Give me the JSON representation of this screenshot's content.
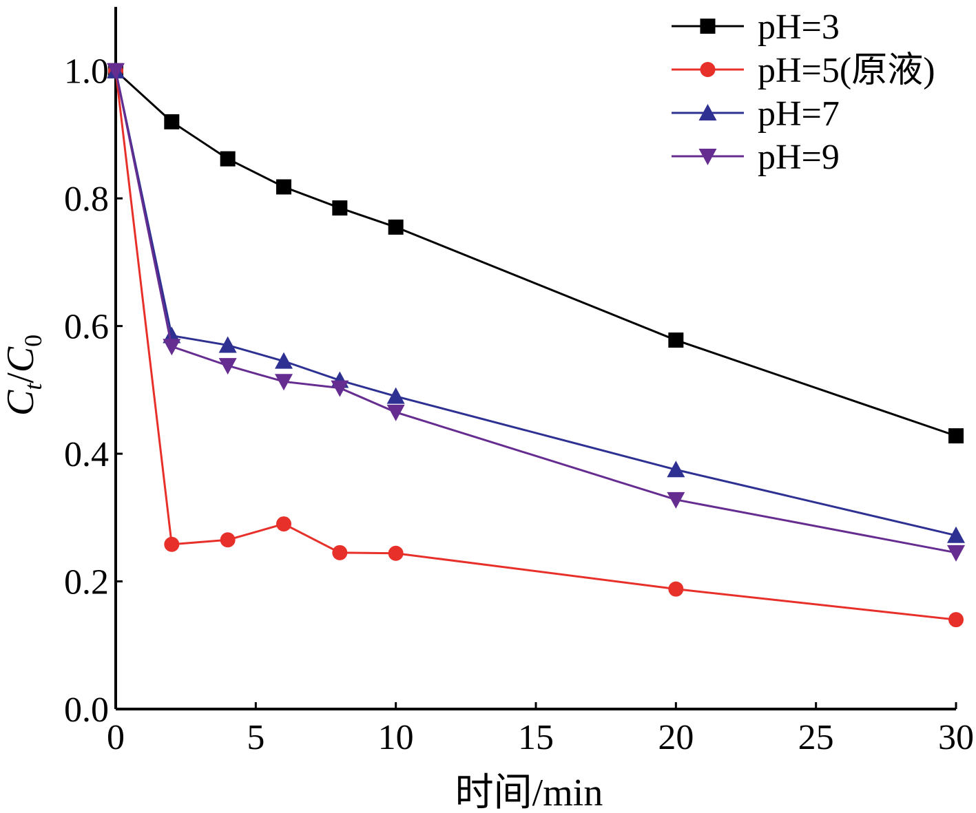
{
  "chart_data": {
    "type": "line",
    "xlabel": "时间/min",
    "ylabel_main": "C",
    "ylabel_sub1": "t",
    "ylabel_slash": "/",
    "ylabel_main2": "C",
    "ylabel_sub2": "0",
    "xlim": [
      0,
      30
    ],
    "ylim": [
      0,
      1.1
    ],
    "xticks": [
      0,
      5,
      10,
      15,
      20,
      25,
      30
    ],
    "xtick_labels": [
      "0",
      "5",
      "10",
      "15",
      "20",
      "25",
      "30"
    ],
    "yticks": [
      0.0,
      0.2,
      0.4,
      0.6,
      0.8,
      1.0
    ],
    "ytick_labels": [
      "0.0",
      "0.2",
      "0.4",
      "0.6",
      "0.8",
      "1.0"
    ],
    "grid": false,
    "legend_position": "top-right",
    "x": [
      0,
      2,
      4,
      6,
      8,
      10,
      20,
      30
    ],
    "series": [
      {
        "name": "pH=3",
        "marker": "square",
        "color": "#000000",
        "values": [
          1.0,
          0.92,
          0.862,
          0.818,
          0.785,
          0.755,
          0.578,
          0.428
        ]
      },
      {
        "name": "pH=5(原液)",
        "marker": "circle",
        "color": "#e8302a",
        "values": [
          1.0,
          0.258,
          0.265,
          0.29,
          0.245,
          0.244,
          0.188,
          0.14
        ]
      },
      {
        "name": "pH=7",
        "marker": "triangle-up",
        "color": "#2e3192",
        "values": [
          1.0,
          0.585,
          0.57,
          0.545,
          0.515,
          0.49,
          0.375,
          0.272
        ]
      },
      {
        "name": "pH=9",
        "marker": "triangle-down",
        "color": "#662d91",
        "values": [
          1.0,
          0.568,
          0.538,
          0.513,
          0.503,
          0.465,
          0.328,
          0.245
        ]
      }
    ]
  }
}
